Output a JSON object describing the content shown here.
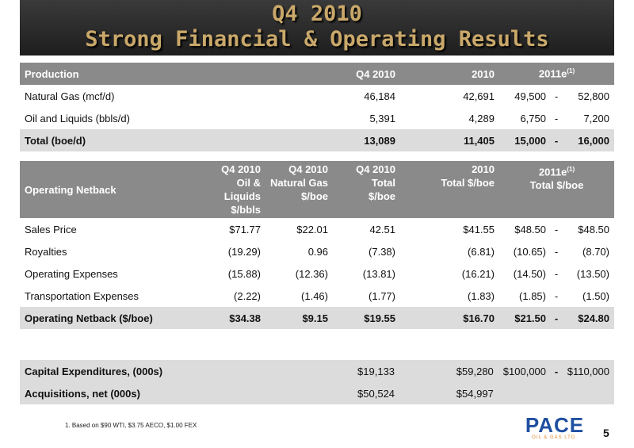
{
  "title": {
    "line1": "Q4 2010",
    "line2": "Strong Financial & Operating Results"
  },
  "production": {
    "headers": [
      "Production",
      "Q4 2010",
      "2010",
      "2011e",
      "(1)"
    ],
    "rows": [
      {
        "label": "Natural Gas (mcf/d)",
        "q4": "46,184",
        "y2010": "42,691",
        "low": "49,500",
        "high": "52,800"
      },
      {
        "label": "Oil  and Liquids (bbls/d)",
        "q4": "5,391",
        "y2010": "4,289",
        "low": "6,750",
        "high": "7,200"
      }
    ],
    "total": {
      "label": "Total (boe/d)",
      "q4": "13,089",
      "y2010": "11,405",
      "low": "15,000",
      "high": "16,000"
    }
  },
  "netback": {
    "headers": {
      "label": "Operating Netback",
      "c1": [
        "Q4 2010",
        "Oil &",
        "Liquids",
        "$/bbls"
      ],
      "c2": [
        "Q4 2010",
        "Natural Gas",
        "$/boe"
      ],
      "c3": [
        "Q4 2010",
        "Total",
        "$/boe"
      ],
      "c4": [
        "2010",
        "Total $/boe"
      ],
      "c5": [
        "2011e",
        "(1)",
        "Total $/boe"
      ]
    },
    "rows": [
      {
        "label": "Sales Price",
        "v1": "$71.77",
        "v2": "$22.01",
        "v3": "42.51",
        "v4": "$41.55",
        "low": "$48.50",
        "high": "$48.50"
      },
      {
        "label": "Royalties",
        "v1": "(19.29)",
        "v2": "0.96",
        "v3": "(7.38)",
        "v4": "(6.81)",
        "low": "(10.65)",
        "high": "(8.70)"
      },
      {
        "label": "Operating Expenses",
        "v1": "(15.88)",
        "v2": "(12.36)",
        "v3": "(13.81)",
        "v4": "(16.21)",
        "low": "(14.50)",
        "high": "(13.50)"
      },
      {
        "label": "Transportation Expenses",
        "v1": "(2.22)",
        "v2": "(1.46)",
        "v3": "(1.77)",
        "v4": "(1.83)",
        "low": "(1.85)",
        "high": "(1.50)"
      }
    ],
    "total": {
      "label": "Operating Netback ($/boe)",
      "v1": "$34.38",
      "v2": "$9.15",
      "v3": "$19.55",
      "v4": "$16.70",
      "low": "$21.50",
      "high": "$24.80"
    }
  },
  "capital": {
    "rows": [
      {
        "label": "Capital Expenditures, (000s)",
        "q4": "$19,133",
        "y2010": "$59,280",
        "low": "$100,000",
        "high": "$110,000"
      },
      {
        "label": "Acquisitions, net (000s)",
        "q4": "$50,524",
        "y2010": "$54,997",
        "low": "",
        "high": ""
      }
    ]
  },
  "range_dash": "-",
  "footnote": "1. Based on $90 WTI, $3.75 AECO, $1.00 FEX",
  "logo": {
    "name": "PACE",
    "sub": "OIL & GAS LTD."
  },
  "page_number": "5"
}
